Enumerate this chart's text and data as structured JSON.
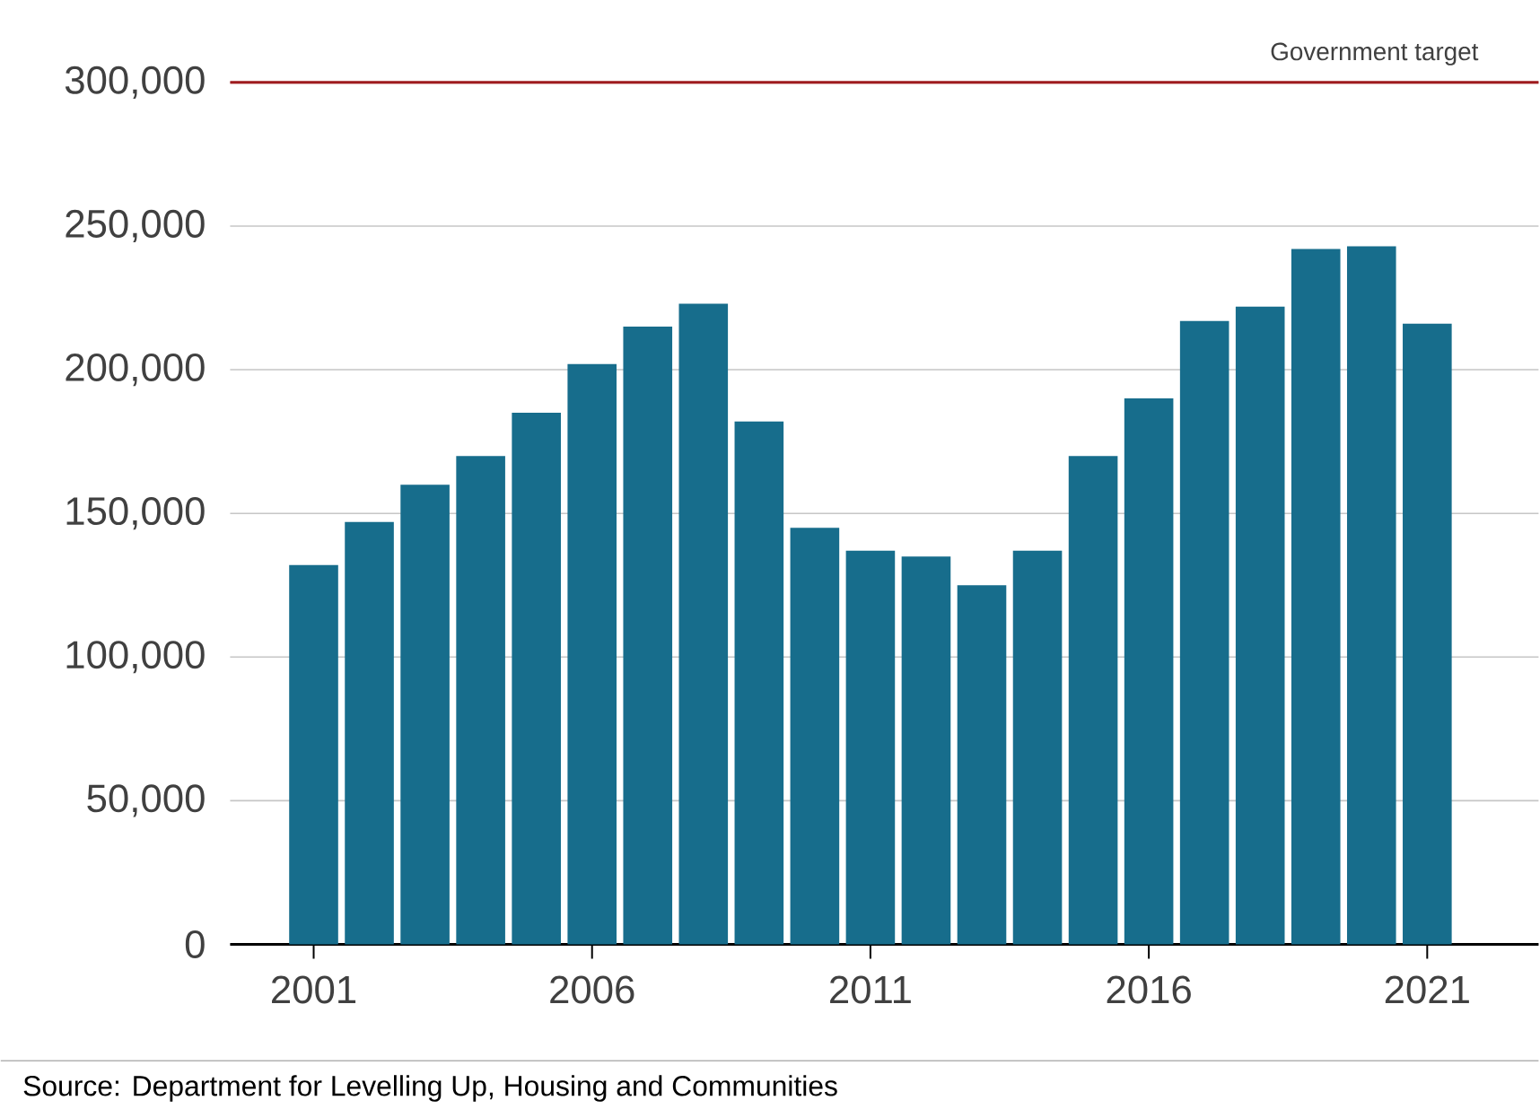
{
  "chart_data": {
    "type": "bar",
    "x": [
      2001,
      2002,
      2003,
      2004,
      2005,
      2006,
      2007,
      2008,
      2009,
      2010,
      2011,
      2012,
      2013,
      2014,
      2015,
      2016,
      2017,
      2018,
      2019,
      2020,
      2021
    ],
    "values": [
      132000,
      147000,
      160000,
      170000,
      185000,
      202000,
      215000,
      223000,
      182000,
      145000,
      137000,
      135000,
      125000,
      137000,
      170000,
      190000,
      217000,
      222000,
      242000,
      243000,
      216000
    ],
    "color": "#176d8c",
    "xlim": [
      1999.5,
      2023
    ],
    "xticks": [
      2001,
      2006,
      2011,
      2016,
      2021
    ],
    "ylim": [
      0,
      300000
    ],
    "yticks": [
      0,
      {
        "value": 50000,
        "label": "50,000"
      },
      {
        "value": 100000,
        "label": "100,000"
      },
      {
        "value": 150000,
        "label": "150,000"
      },
      {
        "value": 200000,
        "label": "200,000"
      },
      {
        "value": 250000,
        "label": "250,000"
      },
      {
        "value": 300000,
        "label": "300,000"
      }
    ],
    "grid": "y",
    "ref_lines": [
      {
        "axis": "y",
        "value": 300000,
        "label": "Government target",
        "color": "#9e1b1e"
      }
    ],
    "annotations": [
      "Source: Department for Levelling Up, Housing and Communities"
    ]
  }
}
